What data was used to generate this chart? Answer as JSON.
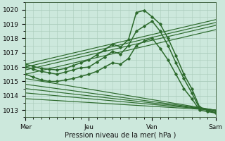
{
  "xlabel": "Pression niveau de la mer( hPa )",
  "bg_color": "#cce8dc",
  "grid_color": "#aaccbb",
  "line_color": "#2d6a2d",
  "xlim": [
    0,
    72
  ],
  "ylim": [
    1012.5,
    1020.5
  ],
  "yticks": [
    1013,
    1014,
    1015,
    1016,
    1017,
    1018,
    1019,
    1020
  ],
  "xtick_positions": [
    0,
    24,
    48,
    72
  ],
  "xtick_labels": [
    "Mer",
    "Jeu",
    "Ven",
    "Sam"
  ],
  "series_marker": [
    {
      "x": [
        0,
        3,
        6,
        9,
        12,
        15,
        18,
        21,
        24,
        27,
        30,
        33,
        36,
        39,
        42,
        45,
        48,
        51,
        54,
        57,
        60,
        63,
        66,
        69,
        72
      ],
      "y": [
        1016.2,
        1016.05,
        1015.9,
        1015.85,
        1015.8,
        1015.9,
        1016.1,
        1016.3,
        1016.5,
        1016.85,
        1017.2,
        1017.6,
        1017.4,
        1017.9,
        1019.8,
        1019.95,
        1019.5,
        1019.0,
        1018.0,
        1016.8,
        1015.5,
        1014.5,
        1013.2,
        1013.0,
        1012.8
      ]
    },
    {
      "x": [
        0,
        3,
        6,
        9,
        12,
        15,
        18,
        21,
        24,
        27,
        30,
        33,
        36,
        39,
        42,
        45,
        48,
        51,
        54,
        57,
        60,
        63,
        66,
        69,
        72
      ],
      "y": [
        1016.0,
        1015.85,
        1015.7,
        1015.6,
        1015.5,
        1015.65,
        1015.8,
        1015.95,
        1016.0,
        1016.35,
        1016.7,
        1017.1,
        1016.9,
        1017.5,
        1018.5,
        1018.85,
        1019.2,
        1018.5,
        1017.5,
        1016.3,
        1015.2,
        1014.2,
        1013.1,
        1013.0,
        1012.9
      ]
    },
    {
      "x": [
        0,
        3,
        6,
        9,
        12,
        15,
        18,
        21,
        24,
        27,
        30,
        33,
        36,
        39,
        42,
        45,
        48,
        51,
        54,
        57,
        60,
        63,
        66,
        69,
        72
      ],
      "y": [
        1015.5,
        1015.3,
        1015.1,
        1015.0,
        1015.0,
        1015.1,
        1015.2,
        1015.35,
        1015.5,
        1015.7,
        1016.0,
        1016.3,
        1016.2,
        1016.6,
        1017.5,
        1017.8,
        1018.0,
        1017.3,
        1016.5,
        1015.5,
        1014.5,
        1013.8,
        1013.0,
        1012.9,
        1012.8
      ]
    }
  ],
  "series_line": [
    {
      "x": [
        0,
        72
      ],
      "y": [
        1016.2,
        1019.3
      ]
    },
    {
      "x": [
        0,
        72
      ],
      "y": [
        1016.0,
        1019.1
      ]
    },
    {
      "x": [
        0,
        72
      ],
      "y": [
        1015.8,
        1018.9
      ]
    },
    {
      "x": [
        0,
        72
      ],
      "y": [
        1015.5,
        1018.6
      ]
    },
    {
      "x": [
        0,
        72
      ],
      "y": [
        1015.2,
        1013.0
      ]
    },
    {
      "x": [
        0,
        72
      ],
      "y": [
        1014.8,
        1013.0
      ]
    },
    {
      "x": [
        0,
        72
      ],
      "y": [
        1014.5,
        1013.0
      ]
    },
    {
      "x": [
        0,
        72
      ],
      "y": [
        1014.2,
        1013.0
      ]
    },
    {
      "x": [
        0,
        72
      ],
      "y": [
        1013.8,
        1013.0
      ]
    }
  ]
}
